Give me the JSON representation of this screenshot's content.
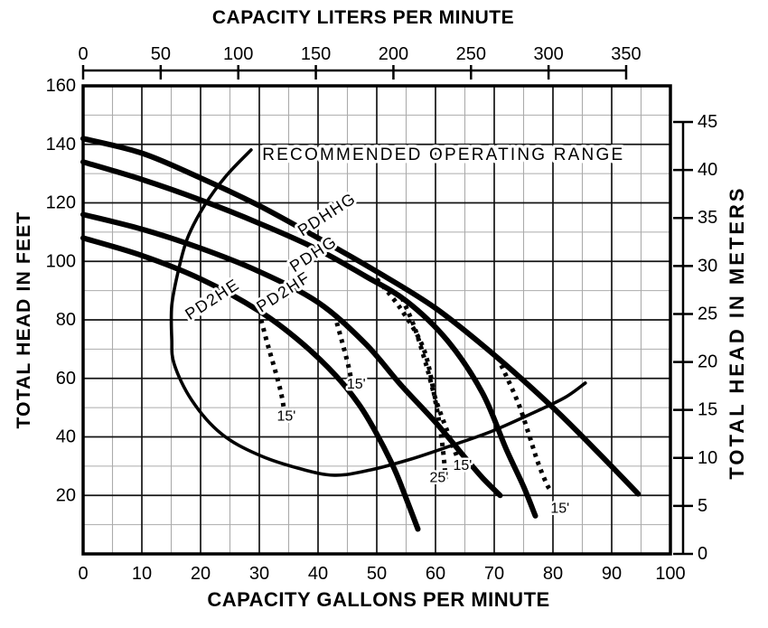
{
  "chart_data": {
    "type": "line",
    "title_top": "CAPACITY LITERS PER MINUTE",
    "title_bottom": "CAPACITY GALLONS PER MINUTE",
    "ylabel_left": "TOTAL HEAD IN FEET",
    "ylabel_right": "TOTAL HEAD IN METERS",
    "x_axis_bottom": {
      "label": "CAPACITY GALLONS PER MINUTE",
      "ticks": [
        0,
        10,
        20,
        30,
        40,
        50,
        60,
        70,
        80,
        90,
        100
      ],
      "range": [
        0,
        100
      ]
    },
    "x_axis_top": {
      "label": "CAPACITY LITERS PER MINUTE",
      "ticks": [
        0,
        50,
        100,
        150,
        200,
        250,
        300,
        350
      ],
      "range": [
        0,
        350
      ]
    },
    "y_axis_left": {
      "label": "TOTAL HEAD IN FEET",
      "ticks": [
        160,
        140,
        120,
        100,
        80,
        60,
        40,
        20
      ],
      "range": [
        0,
        160
      ]
    },
    "y_axis_right": {
      "label": "TOTAL HEAD IN METERS",
      "ticks": [
        45,
        40,
        35,
        30,
        25,
        20,
        15,
        10,
        5,
        0
      ],
      "range": [
        0,
        48.8
      ]
    },
    "grid": {
      "major_x_step_gpm": 10,
      "minor_x_step_gpm": 5,
      "major_y_step_ft": 20,
      "minor_y_step_ft": 10,
      "grid_on": true
    },
    "series": [
      {
        "name": "PDHHG",
        "style": "solid",
        "points_gpm_ft": [
          [
            0,
            142
          ],
          [
            10,
            137
          ],
          [
            20,
            128.5
          ],
          [
            30,
            119
          ],
          [
            40,
            108
          ],
          [
            50,
            96.5
          ],
          [
            60,
            84
          ],
          [
            70,
            68
          ],
          [
            80,
            50
          ],
          [
            88,
            34
          ],
          [
            94.5,
            20.5
          ]
        ],
        "label_at": {
          "gpm": 42.0,
          "ft": 114.5,
          "angle": -33
        }
      },
      {
        "name": "PDHG",
        "style": "solid",
        "points_gpm_ft": [
          [
            0,
            134
          ],
          [
            10,
            128
          ],
          [
            20,
            121
          ],
          [
            30,
            113
          ],
          [
            40,
            104
          ],
          [
            48,
            95
          ],
          [
            55,
            86.5
          ],
          [
            62,
            73
          ],
          [
            68,
            55
          ],
          [
            72,
            36
          ],
          [
            75,
            23
          ],
          [
            77,
            13
          ]
        ],
        "label_at": {
          "gpm": 39.7,
          "ft": 101.0,
          "angle": -33
        }
      },
      {
        "name": "PD2HF",
        "style": "solid",
        "points_gpm_ft": [
          [
            0,
            116
          ],
          [
            10,
            111
          ],
          [
            20,
            104.5
          ],
          [
            30,
            96.5
          ],
          [
            40,
            86
          ],
          [
            48,
            72
          ],
          [
            54,
            58
          ],
          [
            60,
            45
          ],
          [
            65,
            33
          ],
          [
            68,
            26
          ],
          [
            71,
            20
          ]
        ],
        "label_at": {
          "gpm": 34.6,
          "ft": 88.0,
          "angle": -33
        }
      },
      {
        "name": "PD2HE",
        "style": "solid",
        "points_gpm_ft": [
          [
            0,
            108
          ],
          [
            10,
            102
          ],
          [
            20,
            94
          ],
          [
            30,
            83
          ],
          [
            37,
            72.5
          ],
          [
            43,
            61
          ],
          [
            47,
            51
          ],
          [
            50,
            41
          ],
          [
            53,
            29
          ],
          [
            55,
            19
          ],
          [
            57,
            8.5
          ]
        ],
        "label_at": {
          "gpm": 22.5,
          "ft": 85.5,
          "angle": -33
        }
      }
    ],
    "reprime_curves": [
      {
        "label": "15'",
        "parent": "PD2HE",
        "style": "dashed",
        "points_gpm_ft": [
          [
            30.3,
            80
          ],
          [
            31.5,
            71
          ],
          [
            32.8,
            62
          ],
          [
            33.7,
            55
          ],
          [
            34.2,
            49.5
          ]
        ],
        "label_at": {
          "gpm": 34.6,
          "ft": 45.5
        }
      },
      {
        "label": "15'",
        "parent": "PD2HF",
        "style": "dashed",
        "points_gpm_ft": [
          [
            43.2,
            79
          ],
          [
            44.3,
            71
          ],
          [
            45.2,
            64
          ],
          [
            45.7,
            59
          ]
        ],
        "label_at": {
          "gpm": 46.5,
          "ft": 56.5
        }
      },
      {
        "label": "25'",
        "parent": "PDHG",
        "style": "dashed",
        "points_gpm_ft": [
          [
            50,
            94
          ],
          [
            54,
            84
          ],
          [
            58,
            70
          ],
          [
            60,
            52
          ],
          [
            61,
            40
          ],
          [
            61.5,
            31
          ],
          [
            61.7,
            25.5
          ]
        ],
        "label_at": {
          "gpm": 60.6,
          "ft": 24.5
        }
      },
      {
        "label": "15'",
        "parent": "PDHG",
        "style": "dashed",
        "points_gpm_ft": [
          [
            54.3,
            87.5
          ],
          [
            56.5,
            77
          ],
          [
            58.5,
            64
          ],
          [
            60,
            53
          ],
          [
            62,
            42
          ],
          [
            63.5,
            34
          ],
          [
            64.3,
            29.5
          ]
        ],
        "label_at": {
          "gpm": 64.6,
          "ft": 28.8
        }
      },
      {
        "label": "15'",
        "parent": "PDHHG",
        "style": "dashed",
        "points_gpm_ft": [
          [
            71.2,
            64.5
          ],
          [
            74,
            52
          ],
          [
            75.8,
            41.5
          ],
          [
            77.4,
            31.5
          ],
          [
            78.9,
            24
          ],
          [
            79.7,
            21.5
          ]
        ],
        "label_at": {
          "gpm": 81.2,
          "ft": 14.0
        }
      }
    ],
    "operating_range": {
      "label": "RECOMMENDED OPERATING RANGE",
      "label_at": {
        "gpm": 30.5,
        "ft": 134.7
      },
      "points_gpm_ft": [
        [
          28.6,
          138.1
        ],
        [
          24.3,
          129.1
        ],
        [
          20.6,
          118.9
        ],
        [
          17.8,
          108.1
        ],
        [
          16.2,
          96.7
        ],
        [
          15.1,
          84.9
        ],
        [
          15.1,
          73.5
        ],
        [
          15.5,
          64.9
        ],
        [
          18.5,
          52.5
        ],
        [
          23.5,
          41.1
        ],
        [
          29.7,
          34.0
        ],
        [
          36.6,
          29.3
        ],
        [
          42.8,
          26.9
        ],
        [
          48.9,
          28.7
        ],
        [
          55.8,
          32.4
        ],
        [
          62.8,
          37.1
        ],
        [
          69.7,
          42.0
        ],
        [
          76.6,
          48.2
        ],
        [
          82.0,
          53.4
        ],
        [
          85.5,
          58.4
        ]
      ]
    }
  },
  "colors": {
    "curve": "#000000",
    "grid_major": "#141414",
    "grid_minor": "#ababab",
    "border": "#000000",
    "background": "#ffffff",
    "text": "#000000"
  }
}
